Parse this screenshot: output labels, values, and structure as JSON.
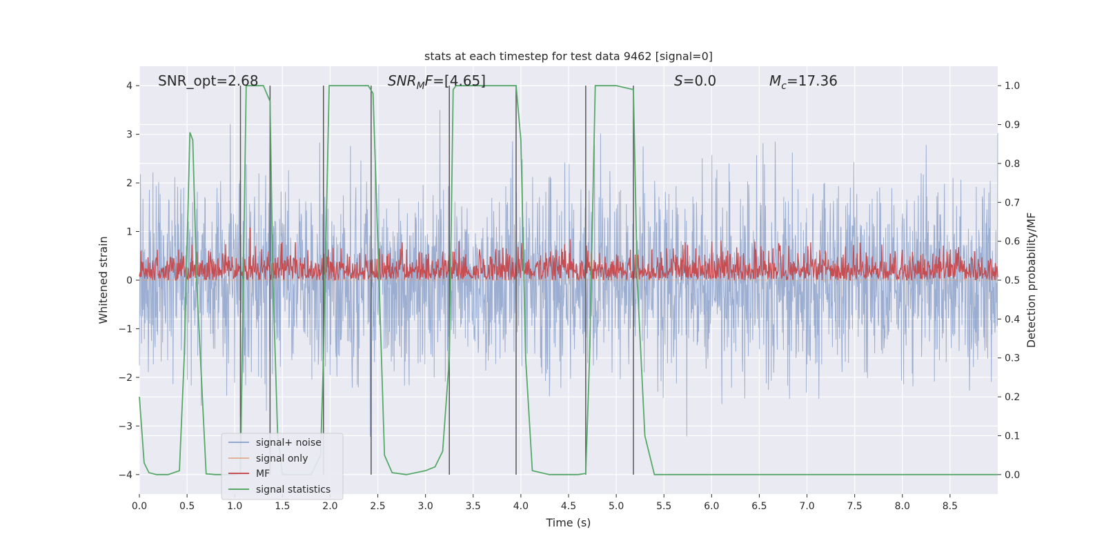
{
  "chart_data": {
    "type": "line",
    "title": "stats at each timestep for test data 9462 [signal=0]",
    "xlabel": "Time (s)",
    "ylabel_left": "Whitened strain",
    "ylabel_right": "Detection probability/MF",
    "xlim": [
      0,
      9
    ],
    "ylim_left": [
      -4.4,
      4.4
    ],
    "ylim_right": [
      -0.05,
      1.05
    ],
    "x_ticks": [
      0.0,
      0.5,
      1.0,
      1.5,
      2.0,
      2.5,
      3.0,
      3.5,
      4.0,
      4.5,
      5.0,
      5.5,
      6.0,
      6.5,
      7.0,
      7.5,
      8.0,
      8.5
    ],
    "x_tick_labels": [
      "0.0",
      "0.5",
      "1.0",
      "1.5",
      "2.0",
      "2.5",
      "3.0",
      "3.5",
      "4.0",
      "4.5",
      "5.0",
      "5.5",
      "6.0",
      "6.5",
      "7.0",
      "7.5",
      "8.0",
      "8.5"
    ],
    "y_ticks_left": [
      -4,
      -3,
      -2,
      -1,
      0,
      1,
      2,
      3,
      4
    ],
    "y_tick_labels_left": [
      "−4",
      "−3",
      "−2",
      "−1",
      "0",
      "1",
      "2",
      "3",
      "4"
    ],
    "y_ticks_right": [
      0.0,
      0.1,
      0.2,
      0.3,
      0.4,
      0.5,
      0.6,
      0.7,
      0.8,
      0.9,
      1.0
    ],
    "y_tick_labels_right": [
      "0.0",
      "0.1",
      "0.2",
      "0.3",
      "0.4",
      "0.5",
      "0.6",
      "0.7",
      "0.8",
      "0.9",
      "1.0"
    ],
    "annotations": [
      {
        "id": "snr-opt",
        "text": "SNR_opt=2.68",
        "x": 0.2
      },
      {
        "id": "snr-mf",
        "text": "SNR_MF=[4.65]",
        "x": 2.6
      },
      {
        "id": "s-value",
        "text": "S=0.0",
        "x": 5.6
      },
      {
        "id": "mc-value",
        "text": "M_c=17.36",
        "x": 6.6
      }
    ],
    "vertical_lines": [
      1.06,
      1.37,
      1.93,
      2.43,
      3.25,
      3.95,
      4.68,
      5.18
    ],
    "series": [
      {
        "name": "signal+ noise",
        "color": "#4c72b0",
        "axis": "left",
        "kind": "noise",
        "amplitude_std": 1.0,
        "y_range": [
          -3.5,
          3.5
        ]
      },
      {
        "name": "signal only",
        "color": "#dd8452",
        "axis": "left",
        "kind": "flat",
        "y": 0.0
      },
      {
        "name": "MF",
        "color": "#c44e52",
        "axis": "right",
        "kind": "noise",
        "baseline": 0.5,
        "y_range": [
          0.5,
          0.64
        ]
      },
      {
        "name": "signal statistics",
        "color": "#55a868",
        "axis": "right",
        "kind": "line",
        "x": [
          0.0,
          0.05,
          0.1,
          0.18,
          0.3,
          0.42,
          0.47,
          0.53,
          0.56,
          0.6,
          0.7,
          0.8,
          0.9,
          1.0,
          1.06,
          1.12,
          1.3,
          1.37,
          1.4,
          1.45,
          1.5,
          1.6,
          1.8,
          1.9,
          1.93,
          1.99,
          2.05,
          2.2,
          2.4,
          2.45,
          2.5,
          2.57,
          2.65,
          2.8,
          3.0,
          3.1,
          3.18,
          3.25,
          3.29,
          3.32,
          3.5,
          3.95,
          4.0,
          4.05,
          4.12,
          4.3,
          4.6,
          4.68,
          4.72,
          4.78,
          5.0,
          5.18,
          5.22,
          5.3,
          5.4,
          6.0,
          9.0
        ],
        "y": [
          0.2,
          0.03,
          0.005,
          0.0,
          0.0,
          0.01,
          0.3,
          0.88,
          0.86,
          0.5,
          0.002,
          0.0,
          0.0,
          0.0,
          0.003,
          1.0,
          1.0,
          0.96,
          0.5,
          0.1,
          0.0,
          0.0,
          0.0,
          0.05,
          0.3,
          1.0,
          1.0,
          1.0,
          1.0,
          0.98,
          0.6,
          0.05,
          0.005,
          0.0,
          0.01,
          0.02,
          0.06,
          0.3,
          0.99,
          1.0,
          1.0,
          1.0,
          0.86,
          0.3,
          0.01,
          0.0,
          0.0,
          0.003,
          0.3,
          1.0,
          1.0,
          0.99,
          0.5,
          0.1,
          0.0,
          0.0,
          0.0
        ]
      }
    ],
    "legend": {
      "placement": "lower-left",
      "entries": [
        {
          "label": "signal+ noise",
          "color": "#4c72b0"
        },
        {
          "label": "signal only",
          "color": "#dd8452"
        },
        {
          "label": "MF",
          "color": "#c44e52"
        },
        {
          "label": "signal statistics",
          "color": "#55a868"
        }
      ]
    },
    "style": {
      "background": "#eaeaf2",
      "grid": "#ffffff",
      "vline_color": "#555555",
      "text_color": "#262626"
    }
  }
}
